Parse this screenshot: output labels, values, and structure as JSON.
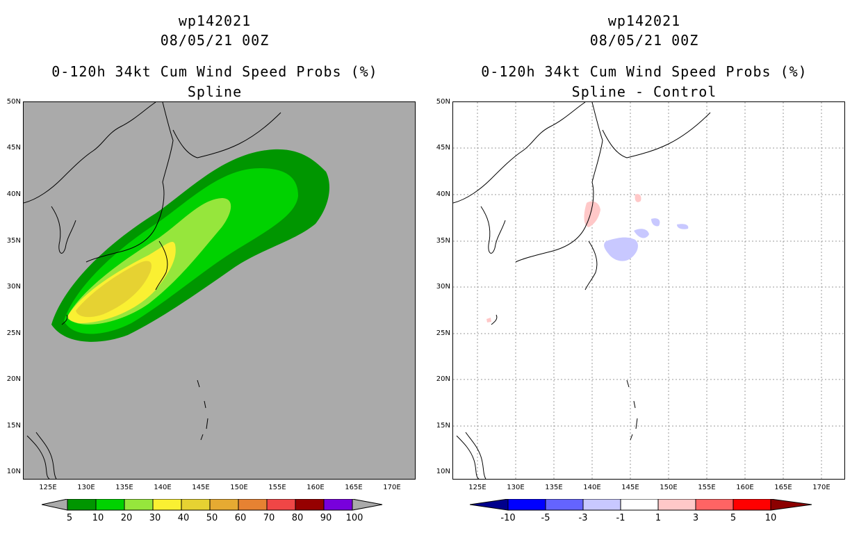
{
  "colors": {
    "land_bg_left": "#aaaaaa",
    "prob_levels": [
      "#009600",
      "#00d200",
      "#96e63c",
      "#faf032",
      "#e6d232",
      "#e6aa32",
      "#e68232",
      "#f04646",
      "#960000",
      "#7800dc"
    ],
    "diff_levels": [
      "#00008c",
      "#0000ff",
      "#6464ff",
      "#c8c8ff",
      "#ffffff",
      "#ffc8c8",
      "#ff6464",
      "#ff0000",
      "#8c0000"
    ]
  },
  "left_panel": {
    "storm_id": "wp142021",
    "datetime": "08/05/21 00Z",
    "product": "0-120h 34kt Cum Wind Speed Probs (%)",
    "subtitle": "Spline",
    "colorbar_labels": [
      "5",
      "10",
      "20",
      "30",
      "40",
      "50",
      "60",
      "70",
      "80",
      "90",
      "100"
    ]
  },
  "right_panel": {
    "storm_id": "wp142021",
    "datetime": "08/05/21 00Z",
    "product": "0-120h 34kt Cum Wind Speed Probs (%)",
    "subtitle": "Spline - Control",
    "colorbar_labels": [
      "-10",
      "-5",
      "-3",
      "-1",
      "1",
      "3",
      "5",
      "10"
    ]
  },
  "axes": {
    "lat_labels": [
      "50N",
      "45N",
      "40N",
      "35N",
      "30N",
      "25N",
      "20N",
      "15N",
      "10N"
    ],
    "lon_labels": [
      "125E",
      "130E",
      "135E",
      "140E",
      "145E",
      "150E",
      "155E",
      "160E",
      "165E",
      "170E"
    ]
  }
}
